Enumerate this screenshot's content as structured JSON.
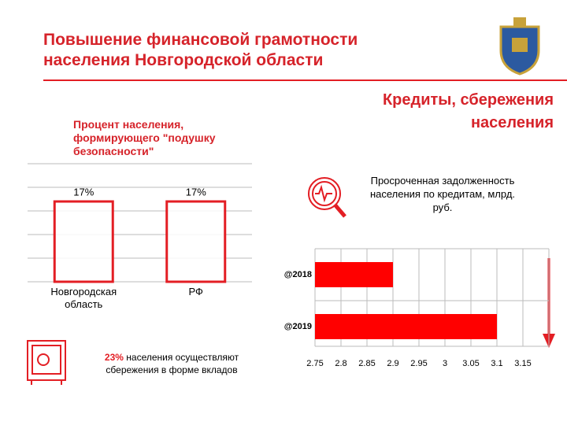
{
  "header": {
    "title": "Повышение финансовой грамотности населения Новгородской области",
    "subtitle": "Кредиты, сбережения населения"
  },
  "chart_data": [
    {
      "type": "bar",
      "title": "Процент населения, формирующего \"подушку безопасности\"",
      "categories": [
        "Новгородская область",
        "РФ"
      ],
      "values": [
        17,
        17
      ],
      "value_labels": [
        "17%",
        "17%"
      ],
      "color": "#e31e24",
      "ylim": [
        0,
        25
      ],
      "yticks": [
        0,
        5,
        10,
        15,
        20,
        25
      ],
      "grid": true
    },
    {
      "type": "hbar",
      "title": "Просроченная задолженность населения по кредитам, млрд. руб.",
      "categories": [
        "@2018",
        "@2019"
      ],
      "values": [
        2.9,
        3.1
      ],
      "color": "#ff0000",
      "xlim": [
        2.75,
        3.2
      ],
      "xticks": [
        2.75,
        2.8,
        2.85,
        2.9,
        2.95,
        3,
        3.05,
        3.1,
        3.15
      ],
      "grid": true
    }
  ],
  "note": {
    "highlight": "23%",
    "text": "населения осуществляют сбережения в форме вкладов"
  }
}
